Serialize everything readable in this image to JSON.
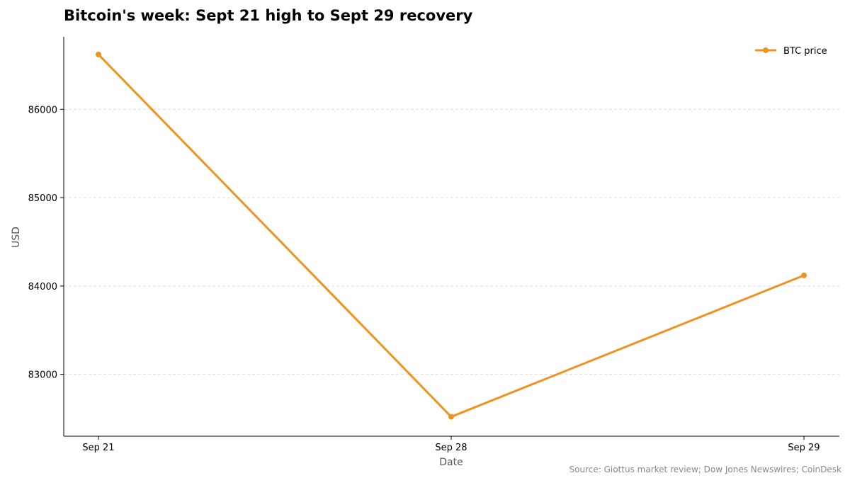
{
  "chart_data": {
    "type": "line",
    "title": "Bitcoin's week: Sept 21 high to Sept 29 recovery",
    "xlabel": "Date",
    "ylabel": "USD",
    "categories": [
      "Sep 21",
      "Sep 28",
      "Sep 29"
    ],
    "series": [
      {
        "name": "BTC price",
        "values": [
          86620,
          82520,
          84120
        ],
        "color": "#f0931e"
      }
    ],
    "yticks": [
      83000,
      84000,
      85000,
      86000
    ],
    "ylim": [
      82300,
      86820
    ],
    "grid": "horizontal dashed",
    "legend": "top-right",
    "source": "Source: Giottus market review; Dow Jones Newswires; CoinDesk"
  }
}
